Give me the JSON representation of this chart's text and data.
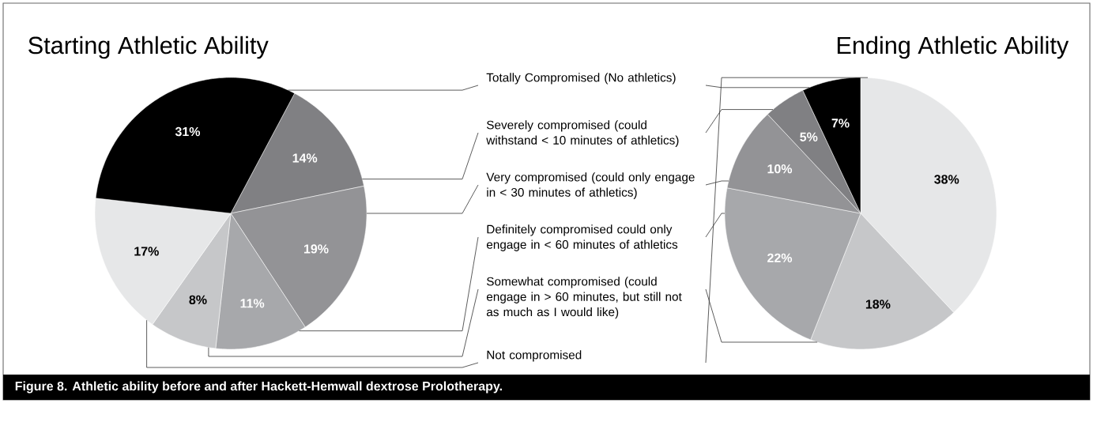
{
  "chart_data": [
    {
      "type": "pie",
      "title": "Starting Athletic Ability",
      "categories": [
        "Totally Compromised (No athletics)",
        "Severely compromised (could withstand < 10 minutes of athletics)",
        "Very compromised (could only engage in < 30 minutes of athletics)",
        "Definitely compromised could only engage in < 60 minutes of athletics",
        "Somewhat compromised (could engage in > 60 minutes, but still not as much as I would like)",
        "Not compromised"
      ],
      "values": [
        31,
        14,
        19,
        11,
        8,
        17
      ],
      "colors": [
        "#000000",
        "#808083",
        "#939396",
        "#a7a8ab",
        "#c6c7c9",
        "#e6e7e8"
      ],
      "value_labels": [
        "31%",
        "14%",
        "19%",
        "11%",
        "8%",
        "17%"
      ],
      "annotations": [
        "Figure 8. Athletic ability before and after Hackett-Hemwall dextrose Prolotherapy."
      ]
    },
    {
      "type": "pie",
      "title": "Ending Athletic Ability",
      "categories": [
        null,
        null,
        null,
        null,
        null,
        null
      ],
      "values": [
        7,
        5,
        10,
        22,
        18,
        38
      ],
      "colors": [
        "#000000",
        "#808083",
        "#939396",
        "#a7a8ab",
        "#c6c7c9",
        "#e6e7e8"
      ],
      "value_labels": [
        "7%",
        "5%",
        "10%",
        "22%",
        "18%",
        "38%"
      ]
    }
  ]
}
